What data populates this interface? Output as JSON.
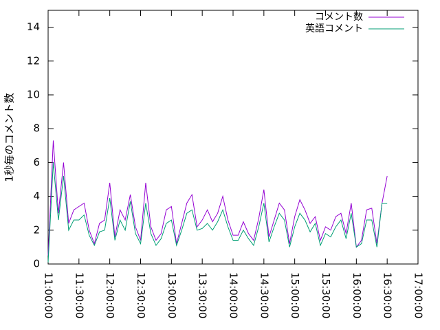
{
  "chart_data": {
    "type": "line",
    "y_label": "1秒毎のコメント数",
    "x": [
      "11:00:00",
      "11:05:00",
      "11:10:00",
      "11:15:00",
      "11:20:00",
      "11:25:00",
      "11:30:00",
      "11:35:00",
      "11:40:00",
      "11:45:00",
      "11:50:00",
      "11:55:00",
      "12:00:00",
      "12:05:00",
      "12:10:00",
      "12:15:00",
      "12:20:00",
      "12:25:00",
      "12:30:00",
      "12:35:00",
      "12:40:00",
      "12:45:00",
      "12:50:00",
      "12:55:00",
      "13:00:00",
      "13:05:00",
      "13:10:00",
      "13:15:00",
      "13:20:00",
      "13:25:00",
      "13:30:00",
      "13:35:00",
      "13:40:00",
      "13:45:00",
      "13:50:00",
      "13:55:00",
      "14:00:00",
      "14:05:00",
      "14:10:00",
      "14:15:00",
      "14:20:00",
      "14:25:00",
      "14:30:00",
      "14:35:00",
      "14:40:00",
      "14:45:00",
      "14:50:00",
      "14:55:00",
      "15:00:00",
      "15:05:00",
      "15:10:00",
      "15:15:00",
      "15:20:00",
      "15:25:00",
      "15:30:00",
      "15:35:00",
      "15:40:00",
      "15:45:00",
      "15:50:00",
      "15:55:00",
      "16:00:00",
      "16:05:00",
      "16:10:00",
      "16:15:00",
      "16:20:00",
      "16:25:00",
      "16:30:00"
    ],
    "series": [
      {
        "name": "コメント数",
        "color": "#9400d3",
        "values": [
          0.5,
          7.3,
          3.0,
          6.0,
          2.4,
          3.2,
          3.4,
          3.6,
          2.0,
          1.2,
          2.4,
          2.6,
          4.8,
          1.6,
          3.2,
          2.6,
          4.1,
          2.2,
          1.4,
          4.8,
          2.2,
          1.4,
          1.8,
          3.2,
          3.4,
          1.2,
          2.4,
          3.6,
          4.1,
          2.2,
          2.6,
          3.2,
          2.5,
          3.0,
          4.0,
          2.6,
          1.7,
          1.7,
          2.5,
          1.8,
          1.4,
          2.7,
          4.4,
          1.6,
          2.6,
          3.6,
          3.2,
          1.2,
          2.8,
          3.8,
          3.2,
          2.4,
          2.8,
          1.4,
          2.2,
          2.0,
          2.8,
          3.0,
          1.8,
          3.6,
          1.0,
          1.4,
          3.2,
          3.3,
          1.2,
          3.6,
          5.2
        ]
      },
      {
        "name": "英語コメント",
        "color": "#009e73",
        "values": [
          0.1,
          6.0,
          2.6,
          5.2,
          2.0,
          2.6,
          2.6,
          2.9,
          1.7,
          1.1,
          1.9,
          2.0,
          3.9,
          1.4,
          2.6,
          2.0,
          3.7,
          1.8,
          1.2,
          3.6,
          1.8,
          1.1,
          1.5,
          2.4,
          2.6,
          1.1,
          2.0,
          3.0,
          3.2,
          2.0,
          2.1,
          2.4,
          2.0,
          2.5,
          3.2,
          2.2,
          1.4,
          1.4,
          2.0,
          1.5,
          1.1,
          2.2,
          3.6,
          1.3,
          2.2,
          3.0,
          2.6,
          1.0,
          2.2,
          3.0,
          2.6,
          1.9,
          2.4,
          1.1,
          1.8,
          1.6,
          2.2,
          2.6,
          1.5,
          3.0,
          1.0,
          1.2,
          2.6,
          2.6,
          1.0,
          3.6,
          3.6
        ]
      }
    ],
    "xlim": [
      "11:00:00",
      "17:00:00"
    ],
    "xticks": [
      "11:00:00",
      "11:30:00",
      "12:00:00",
      "12:30:00",
      "13:00:00",
      "13:30:00",
      "14:00:00",
      "14:30:00",
      "15:00:00",
      "15:30:00",
      "16:00:00",
      "16:30:00",
      "17:00:00"
    ],
    "ylim": [
      0,
      15
    ],
    "yticks": [
      0,
      2,
      4,
      6,
      8,
      10,
      12,
      14
    ],
    "legend": "top-right"
  }
}
